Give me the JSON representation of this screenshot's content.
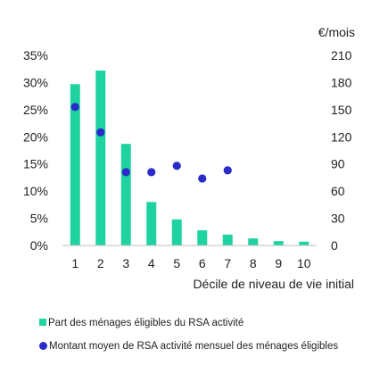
{
  "chart_data": {
    "type": "bar",
    "categories": [
      "1",
      "2",
      "3",
      "4",
      "5",
      "6",
      "7",
      "8",
      "9",
      "10"
    ],
    "series": [
      {
        "name": "Part des ménages éligibles du RSA activité",
        "type": "bar",
        "axis": "left",
        "values": [
          29.7,
          32.2,
          18.7,
          8.0,
          4.8,
          2.8,
          2.0,
          1.3,
          0.8,
          0.7
        ]
      },
      {
        "name": "Montant moyen de RSA activité mensuel des ménages éligibles",
        "type": "scatter",
        "axis": "right",
        "values": [
          153,
          125,
          81,
          81,
          88,
          74,
          83,
          null,
          null,
          null
        ]
      }
    ],
    "y_left": {
      "min": 0,
      "max": 35,
      "step": 5,
      "tick_labels": [
        "0%",
        "5%",
        "10%",
        "15%",
        "20%",
        "25%",
        "30%",
        "35%"
      ]
    },
    "y_right": {
      "min": 0,
      "max": 210,
      "step": 30,
      "unit_label": "€/mois",
      "tick_labels": [
        "0",
        "30",
        "60",
        "90",
        "120",
        "150",
        "180",
        "210"
      ]
    },
    "xlabel": "Décile de niveau de vie initial",
    "grid": false,
    "legend_position": "bottom",
    "colors": {
      "bars": "#1fd3a0",
      "dots": "#2b2bc9",
      "axis": "#bfbfbf"
    }
  }
}
